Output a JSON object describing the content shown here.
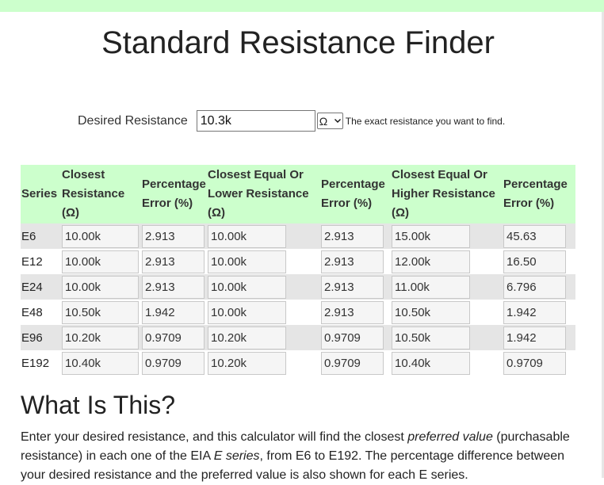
{
  "page": {
    "title": "Standard Resistance Finder",
    "accent_color": "#ccffcc",
    "row_shade": "#e5e5e5"
  },
  "input": {
    "label": "Desired Resistance",
    "value": "10.3k",
    "unit": "Ω",
    "hint": "The exact resistance you want to find."
  },
  "table": {
    "headers": [
      "Series",
      "Closest Resistance (Ω)",
      "Percentage Error (%)",
      "Closest Equal Or Lower Resistance (Ω)",
      "Percentage Error (%)",
      "Closest Equal Or Higher Resistance (Ω)",
      "Percentage Error (%)"
    ],
    "rows": [
      {
        "series": "E6",
        "closest": "10.00k",
        "closest_err": "2.913",
        "lower": "10.00k",
        "lower_err": "2.913",
        "higher": "15.00k",
        "higher_err": "45.63"
      },
      {
        "series": "E12",
        "closest": "10.00k",
        "closest_err": "2.913",
        "lower": "10.00k",
        "lower_err": "2.913",
        "higher": "12.00k",
        "higher_err": "16.50"
      },
      {
        "series": "E24",
        "closest": "10.00k",
        "closest_err": "2.913",
        "lower": "10.00k",
        "lower_err": "2.913",
        "higher": "11.00k",
        "higher_err": "6.796"
      },
      {
        "series": "E48",
        "closest": "10.50k",
        "closest_err": "1.942",
        "lower": "10.00k",
        "lower_err": "2.913",
        "higher": "10.50k",
        "higher_err": "1.942"
      },
      {
        "series": "E96",
        "closest": "10.20k",
        "closest_err": "0.9709",
        "lower": "10.20k",
        "lower_err": "0.9709",
        "higher": "10.50k",
        "higher_err": "1.942"
      },
      {
        "series": "E192",
        "closest": "10.40k",
        "closest_err": "0.9709",
        "lower": "10.20k",
        "lower_err": "0.9709",
        "higher": "10.40k",
        "higher_err": "0.9709"
      }
    ]
  },
  "about": {
    "heading": "What Is This?",
    "p1": "Enter your desired resistance, and this calculator will find the closest ",
    "p1_em1": "preferred value",
    "p2": " (purchasable resistance) in each one of the EIA ",
    "p2_em2": "E series",
    "p3": ", from E6 to E192. The percentage difference between your desired resistance and the preferred value is also shown for each E series."
  }
}
